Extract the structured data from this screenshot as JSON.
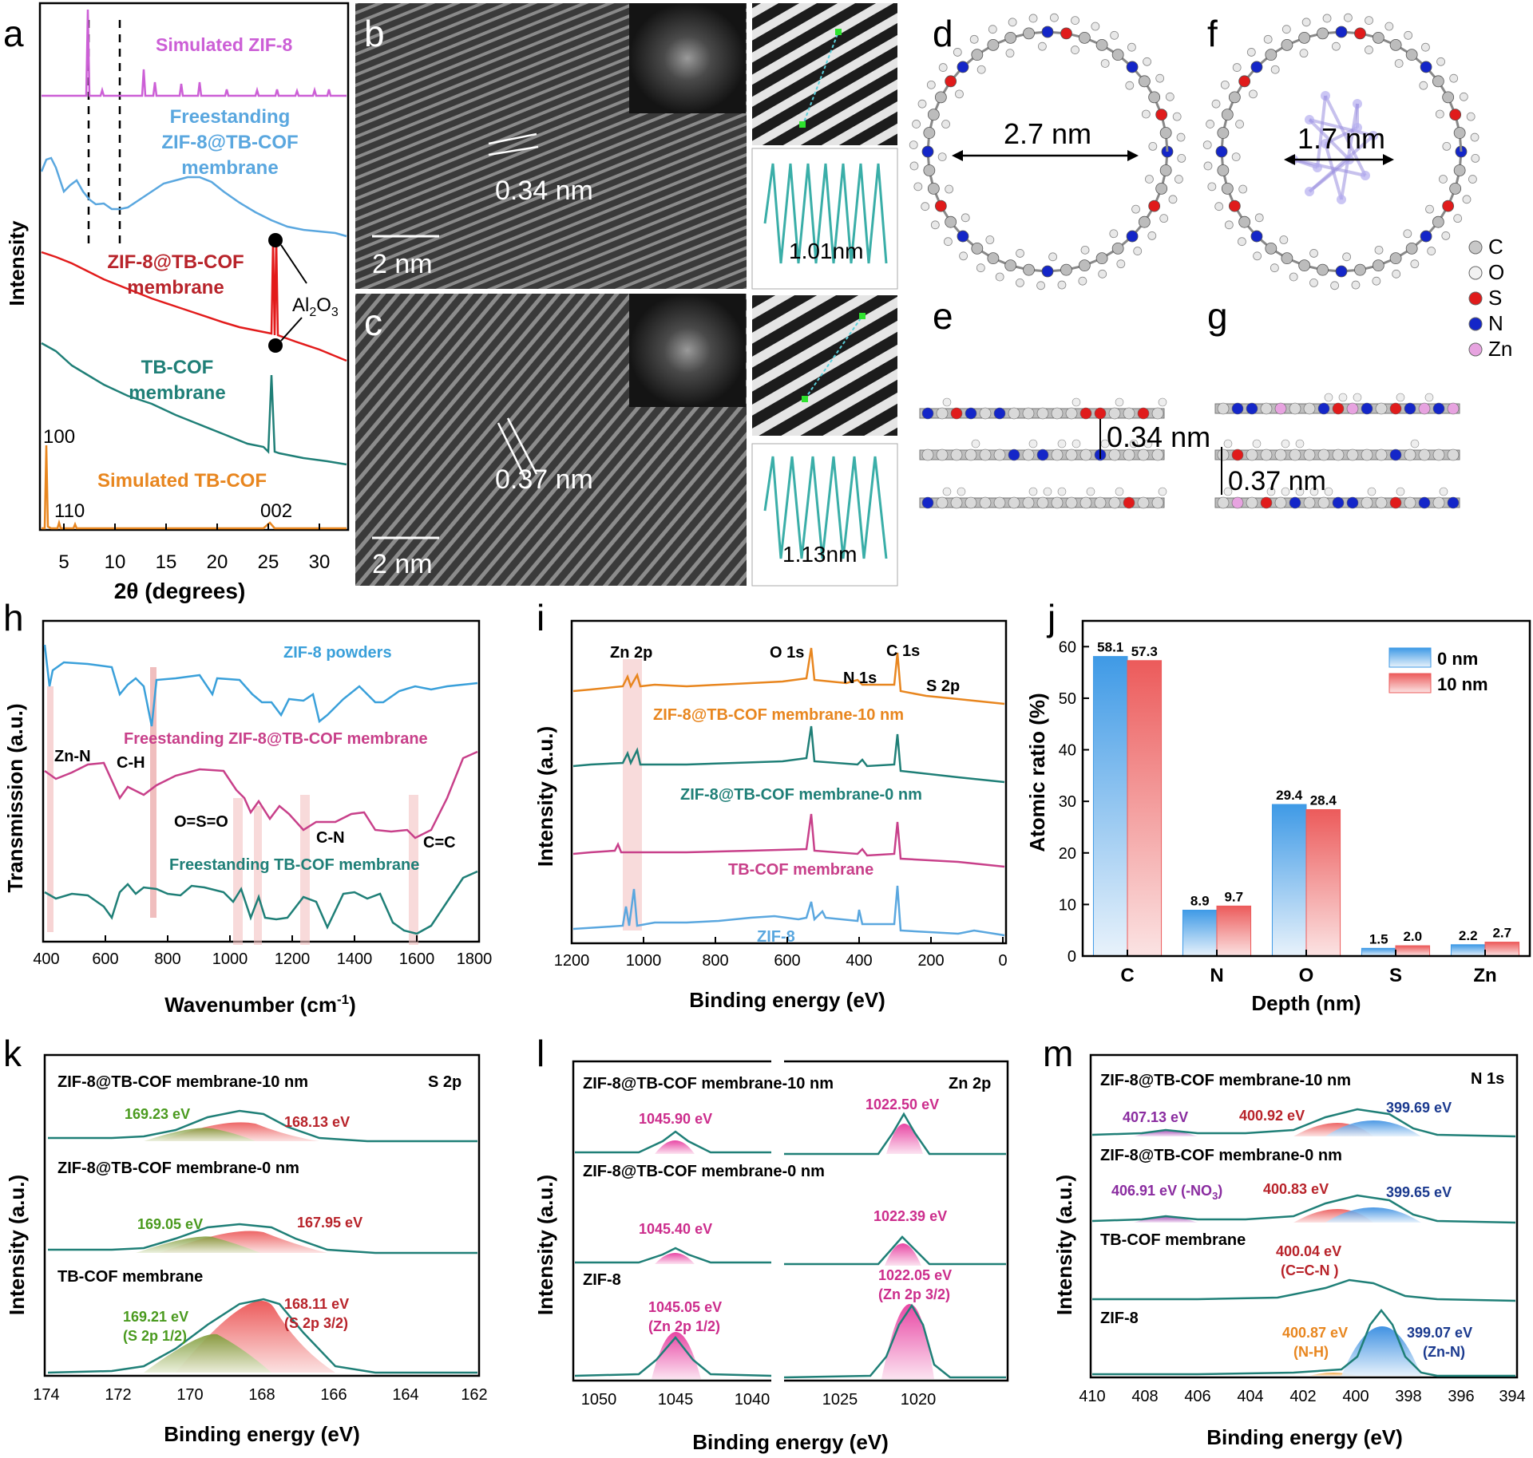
{
  "panel_letters": {
    "a": "a",
    "b": "b",
    "c": "c",
    "d": "d",
    "e": "e",
    "f": "f",
    "g": "g",
    "h": "h",
    "i": "i",
    "j": "j",
    "k": "k",
    "l": "l",
    "m": "m"
  },
  "colors": {
    "orange": "#e8861f",
    "teal": "#1f7f77",
    "red": "#e21b1b",
    "blue": "#5aa7df",
    "pink": "#c8408a",
    "magenta": "#cc5fd6",
    "green": "#4a9a1e",
    "darkred": "#b8232a",
    "purple": "#8a2ca0",
    "navy": "#1b3a8f",
    "zn": "#cc2d8c"
  },
  "panel_a": {
    "xlabel": "2θ (degrees)",
    "ylabel": "Intensity",
    "xticks": [
      "5",
      "10",
      "15",
      "20",
      "25",
      "30"
    ],
    "labels": {
      "sim_zif8": "Simulated ZIF-8",
      "free_1": "Freestanding",
      "free_2": "ZIF-8@TB-COF",
      "free_3": "membrane",
      "memb_1": "ZIF-8@TB-COF",
      "memb_2": "membrane",
      "al2o3": "Al",
      "al2o3_sub": "2",
      "al2o3_o": "O",
      "al2o3_sub3": "3",
      "tb_1": "TB-COF",
      "tb_2": "membrane",
      "sim_tb": "Simulated TB-COF",
      "p100": "100",
      "p110": "110",
      "p002": "002"
    }
  },
  "panel_b": {
    "spacing": "0.34 nm",
    "scale": "2 nm",
    "profile": "1.01nm"
  },
  "panel_c": {
    "spacing": "0.37 nm",
    "scale": "2 nm",
    "profile": "1.13nm"
  },
  "panel_d": {
    "pore": "2.7 nm"
  },
  "panel_e": {
    "spacing": "0.34 nm"
  },
  "panel_f": {
    "pore": "1.7 nm"
  },
  "panel_g": {
    "spacing": "0.37 nm"
  },
  "legend_atoms": [
    {
      "sym": "C",
      "color": "#c8c8c8"
    },
    {
      "sym": "O",
      "color": "#f2f2f2"
    },
    {
      "sym": "S",
      "color": "#e01b1b"
    },
    {
      "sym": "N",
      "color": "#1426c8"
    },
    {
      "sym": "Zn",
      "color": "#e7a3e0"
    }
  ],
  "panel_h": {
    "xlabel": "Wavenumber (cm",
    "xlabel_sup": "-1",
    "xlabel_end": ")",
    "ylabel": "Transmission (a.u.)",
    "xticks": [
      "400",
      "600",
      "800",
      "1000",
      "1200",
      "1400",
      "1600",
      "1800"
    ],
    "labels": {
      "zif8": "ZIF-8 powders",
      "free_zif": "Freestanding ZIF-8@TB-COF membrane",
      "free_tb": "Freestanding TB-COF membrane",
      "znn": "Zn-N",
      "ch": "C-H",
      "oso": "O=S=O",
      "cn": "C-N",
      "cc": "C=C"
    }
  },
  "panel_i": {
    "xlabel": "Binding energy (eV)",
    "ylabel": "Intensity (a.u.)",
    "xticks": [
      "1200",
      "1000",
      "800",
      "600",
      "400",
      "200",
      "0"
    ],
    "labels": {
      "zn2p": "Zn 2p",
      "o1s": "O 1s",
      "n1s": "N 1s",
      "c1s": "C 1s",
      "s2p": "S 2p",
      "m10": "ZIF-8@TB-COF membrane-10 nm",
      "m0": "ZIF-8@TB-COF membrane-0 nm",
      "tb": "TB-COF membrane",
      "zif8": "ZIF-8"
    }
  },
  "chart_data": [
    {
      "panel": "j",
      "type": "bar",
      "categories": [
        "C",
        "N",
        "O",
        "S",
        "Zn"
      ],
      "series": [
        {
          "name": "0 nm",
          "values": [
            58.1,
            8.9,
            29.4,
            1.5,
            2.2
          ]
        },
        {
          "name": "10 nm",
          "values": [
            57.3,
            9.7,
            28.4,
            2.0,
            2.7
          ]
        }
      ],
      "xlabel": "Depth (nm)",
      "ylabel": "Atomic ratio (%)",
      "ylim": [
        0,
        65
      ],
      "yticks": [
        "0",
        "10",
        "20",
        "30",
        "40",
        "50",
        "60"
      ],
      "legend": "top-right"
    }
  ],
  "panel_k": {
    "xlabel": "Binding energy (eV)",
    "ylabel": "Intensity (a.u.)",
    "xticks": [
      "174",
      "172",
      "170",
      "168",
      "166",
      "164",
      "162"
    ],
    "tag": "S 2p",
    "rows": [
      {
        "title": "ZIF-8@TB-COF membrane-10 nm",
        "left": "169.23 eV",
        "right": "168.13 eV"
      },
      {
        "title": "ZIF-8@TB-COF membrane-0 nm",
        "left": "169.05 eV",
        "right": "167.95 eV"
      },
      {
        "title": "TB-COF membrane",
        "left": "169.21 eV",
        "left2": "(S 2p 1/2)",
        "right": "168.11 eV",
        "right2": "(S 2p 3/2)"
      }
    ]
  },
  "panel_l": {
    "xlabel": "Binding energy (eV)",
    "ylabel": "Intensity (a.u.)",
    "xticks": [
      "1050",
      "1045",
      "1040",
      "1025",
      "1020"
    ],
    "tag": "Zn 2p",
    "rows": [
      {
        "title": "ZIF-8@TB-COF membrane-10 nm",
        "left": "1045.90 eV",
        "right": "1022.50 eV"
      },
      {
        "title": "ZIF-8@TB-COF membrane-0 nm",
        "left": "1045.40 eV",
        "right": "1022.39 eV"
      },
      {
        "title": "ZIF-8",
        "left": "1045.05 eV",
        "left2": "(Zn 2p 1/2)",
        "right": "1022.05 eV",
        "right2": "(Zn 2p 3/2)"
      }
    ]
  },
  "panel_m": {
    "xlabel": "Binding energy (eV)",
    "ylabel": "Intensity (a.u.)",
    "xticks": [
      "410",
      "408",
      "406",
      "404",
      "402",
      "400",
      "398",
      "396",
      "394"
    ],
    "tag": "N 1s",
    "rows": [
      {
        "title": "ZIF-8@TB-COF membrane-10 nm",
        "a": "407.13 eV",
        "b": "400.92 eV",
        "c": "399.69 eV"
      },
      {
        "title": "ZIF-8@TB-COF membrane-0 nm",
        "a": "406.91 eV (-NO",
        "a_sub": "3",
        "a_end": ")",
        "b": "400.83 eV",
        "c": "399.65 eV"
      },
      {
        "title": "TB-COF membrane",
        "b": "400.04 eV",
        "b2": "(C=C-N )"
      },
      {
        "title": "ZIF-8",
        "b": "400.87 eV",
        "b2": "(N-H)",
        "c": "399.07 eV",
        "c2": "(Zn-N)"
      }
    ]
  }
}
